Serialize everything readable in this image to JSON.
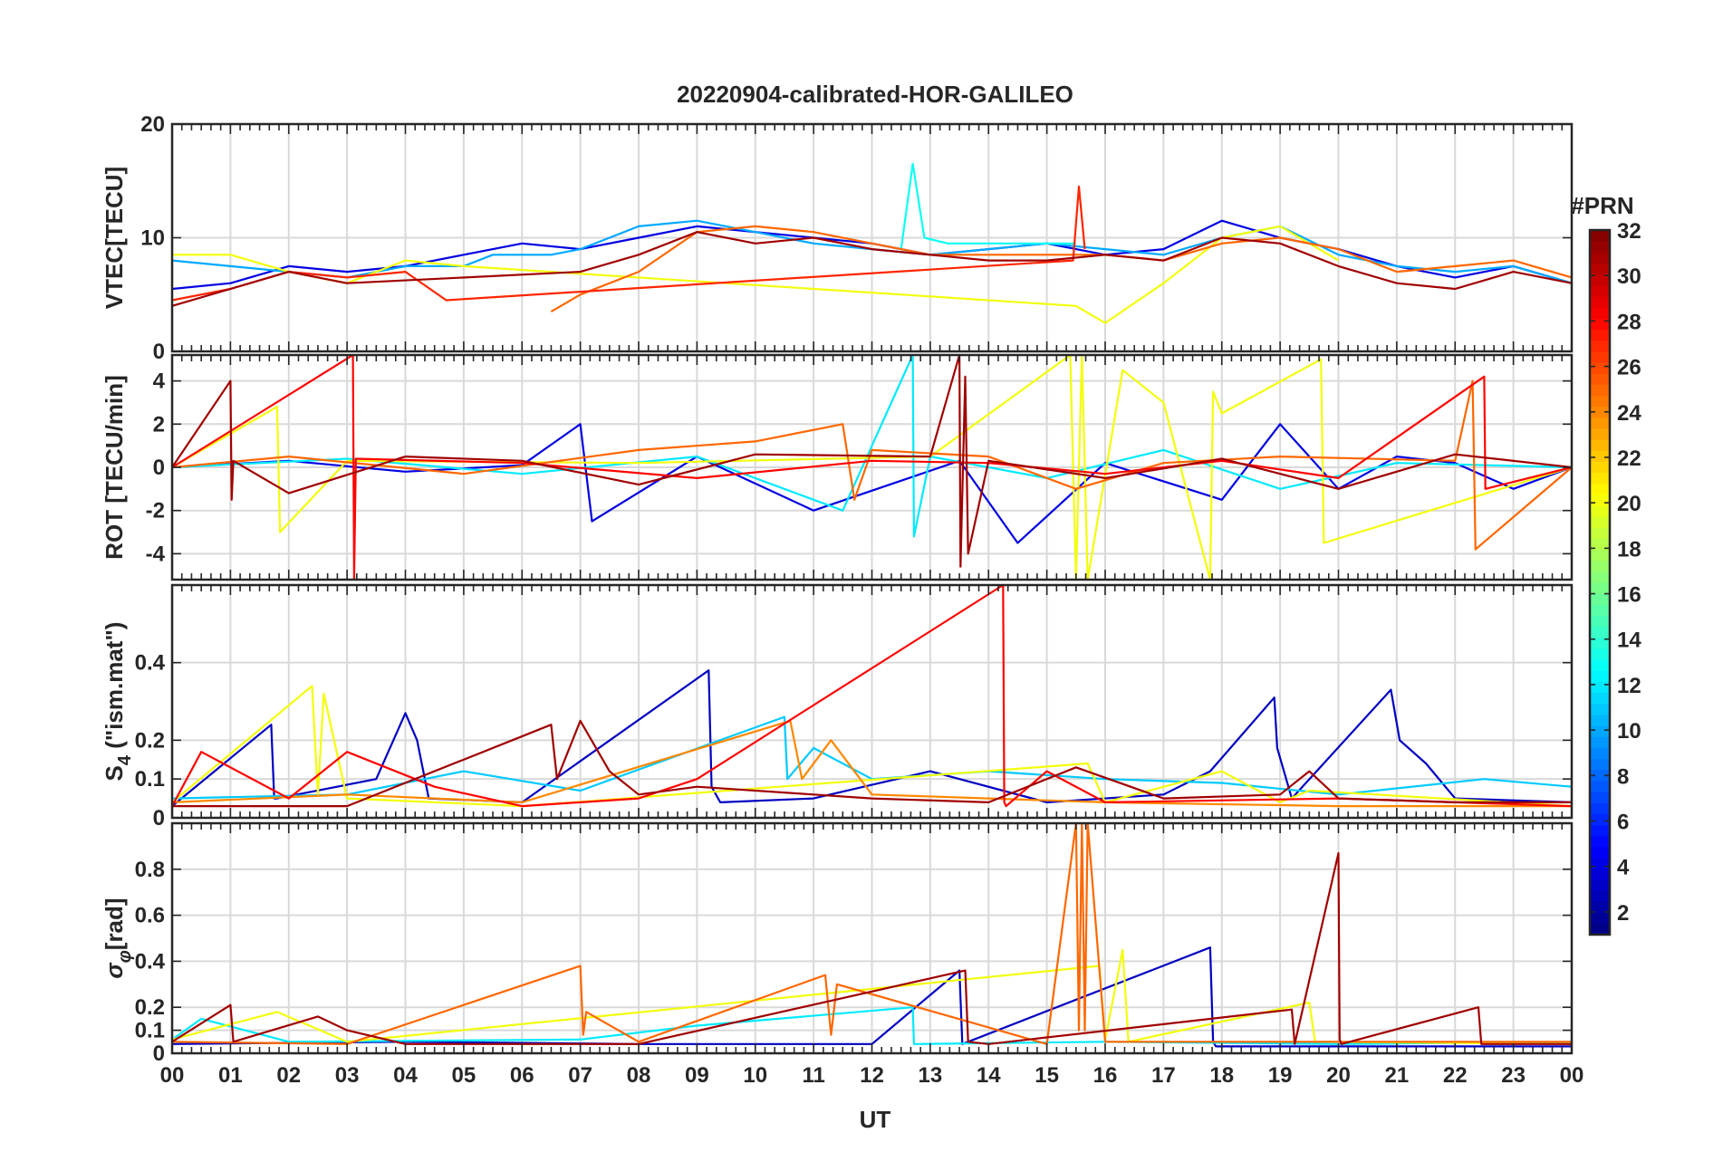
{
  "chart_data": {
    "type": "line",
    "title": "20220904-calibrated-HOR-GALILEO",
    "xlabel": "UT",
    "x_ticks": [
      "00",
      "01",
      "02",
      "03",
      "04",
      "05",
      "06",
      "07",
      "08",
      "09",
      "10",
      "11",
      "12",
      "13",
      "14",
      "15",
      "16",
      "17",
      "18",
      "19",
      "20",
      "21",
      "22",
      "23",
      "00"
    ],
    "xlim": [
      0,
      24
    ],
    "colorbar": {
      "label": "#PRN",
      "range": [
        1,
        32
      ],
      "ticks": [
        "2",
        "4",
        "6",
        "8",
        "10",
        "12",
        "14",
        "16",
        "18",
        "20",
        "22",
        "24",
        "26",
        "28",
        "30",
        "32"
      ],
      "tick_values": [
        2,
        4,
        6,
        8,
        10,
        12,
        14,
        16,
        18,
        20,
        22,
        24,
        26,
        28,
        30,
        32
      ],
      "colormap": "jet"
    },
    "panels": [
      {
        "id": "vtec",
        "ylabel": "VTEC[TECU]",
        "ylim": [
          0,
          20
        ],
        "y_ticks": [
          0,
          10,
          20
        ],
        "y_tick_labels": [
          "0",
          "10",
          "20"
        ],
        "series": [
          {
            "prn": 4,
            "x": [
              0,
              1,
              2,
              3,
              4,
              5,
              6,
              7,
              8,
              9,
              10,
              11,
              12,
              13,
              14,
              15,
              16,
              17,
              18,
              19,
              20,
              21,
              22,
              23,
              24
            ],
            "y": [
              5.5,
              6,
              7.5,
              7,
              7.5,
              8.5,
              9.5,
              9,
              10,
              11,
              10.5,
              10,
              9.5,
              8.5,
              9,
              9.5,
              8.5,
              9,
              11.5,
              10,
              9,
              7.5,
              6.5,
              7.5,
              6
            ]
          },
          {
            "prn": 10,
            "x": [
              0,
              1,
              2,
              3,
              4,
              5,
              5.5,
              6.5,
              7,
              8,
              9,
              10,
              11,
              12,
              13,
              14,
              15,
              16,
              17,
              18,
              19,
              20,
              21,
              22,
              23,
              24
            ],
            "y": [
              8,
              7.5,
              7,
              6.5,
              7.5,
              7.5,
              8.5,
              8.5,
              9,
              11,
              11.5,
              10.5,
              9.5,
              9,
              8.5,
              9,
              9.5,
              9,
              8.5,
              10,
              11,
              8.5,
              7.5,
              7,
              7.5,
              6
            ]
          },
          {
            "prn": 13,
            "x": [
              12.5,
              12.7,
              12.9,
              13.3,
              14,
              15,
              15.5
            ],
            "y": [
              9,
              16.5,
              10,
              9.5,
              9.5,
              9.5,
              9.5
            ]
          },
          {
            "prn": 20,
            "x": [
              0,
              1,
              2,
              3,
              4,
              5,
              15.5,
              16,
              17,
              18,
              19,
              20
            ],
            "y": [
              8.5,
              8.5,
              7,
              6,
              8,
              7.5,
              4,
              2.5,
              6,
              10,
              11,
              8
            ]
          },
          {
            "prn": 25,
            "x": [
              6.5,
              7,
              8,
              9,
              10,
              11,
              12,
              13,
              14,
              15,
              16,
              17,
              18,
              19,
              20,
              21,
              22,
              23,
              24
            ],
            "y": [
              3.5,
              5,
              7,
              10.5,
              11,
              10.5,
              9.5,
              8.5,
              8.5,
              8.5,
              8.5,
              8,
              9.5,
              10,
              9,
              7,
              7.5,
              8,
              6.5
            ]
          },
          {
            "prn": 27,
            "x": [
              0,
              1,
              2,
              3,
              4,
              4.7,
              15.45,
              15.55,
              15.65
            ],
            "y": [
              4.5,
              5.5,
              7,
              6.5,
              7,
              4.5,
              8,
              14.5,
              9
            ]
          },
          {
            "prn": 31,
            "x": [
              0,
              1,
              2,
              3,
              7,
              8,
              9,
              10,
              11,
              12,
              13,
              14,
              15,
              16,
              17,
              18,
              19,
              20,
              21,
              22,
              23,
              24
            ],
            "y": [
              4,
              5.5,
              7,
              6,
              7,
              8.5,
              10.5,
              9.5,
              10,
              9,
              8.5,
              8,
              8,
              8.5,
              8,
              10,
              9.5,
              7.5,
              6,
              5.5,
              7,
              6
            ]
          }
        ]
      },
      {
        "id": "rot",
        "ylabel": "ROT [TECU/min]",
        "ylim": [
          -5.2,
          5.2
        ],
        "y_ticks": [
          -4,
          -2,
          0,
          2,
          4
        ],
        "y_tick_labels": [
          "-4",
          "-2",
          "0",
          "2",
          "4"
        ],
        "series": [
          {
            "prn": 4,
            "x": [
              0,
              2,
              4,
              6,
              7,
              7.2,
              9,
              11,
              13.5,
              14.5,
              16,
              18,
              19,
              20,
              21,
              22,
              23,
              24
            ],
            "y": [
              0,
              0.3,
              -0.2,
              0.1,
              2,
              -2.5,
              0.5,
              -2,
              0.3,
              -3.5,
              0.2,
              -1.5,
              2,
              -1,
              0.5,
              0.2,
              -1,
              0
            ]
          },
          {
            "prn": 12,
            "x": [
              0,
              3,
              6,
              9,
              11.5,
              12.7,
              12.72,
              13,
              15,
              17,
              19,
              21,
              24
            ],
            "y": [
              0,
              0.4,
              -0.3,
              0.5,
              -2,
              5.2,
              -3.2,
              0.5,
              -0.5,
              0.8,
              -1,
              0.2,
              0
            ]
          },
          {
            "prn": 20,
            "x": [
              0,
              1.8,
              1.85,
              3,
              8,
              13,
              15.4,
              15.5,
              15.6,
              15.7,
              16.3,
              17,
              17.8,
              17.85,
              18,
              19.7,
              19.75,
              24
            ],
            "y": [
              0,
              2.8,
              -3,
              0.3,
              0.2,
              0.5,
              5.2,
              -5.2,
              5.2,
              -5.2,
              4.5,
              3,
              -5.2,
              3.5,
              2.5,
              5,
              -3.5,
              0
            ]
          },
          {
            "prn": 25,
            "x": [
              0,
              2,
              5,
              8,
              10,
              11.5,
              11.7,
              12,
              14,
              15.5,
              17,
              19,
              22,
              22.3,
              22.35,
              24
            ],
            "y": [
              0,
              0.5,
              -0.3,
              0.8,
              1.2,
              2,
              -1.5,
              0.8,
              0.5,
              -1,
              0.2,
              0.5,
              0.3,
              4,
              -3.8,
              0
            ]
          },
          {
            "prn": 28,
            "x": [
              0,
              3.1,
              3.12,
              3.15,
              6,
              9,
              12,
              14,
              16,
              18,
              20,
              22.5,
              22.52,
              24
            ],
            "y": [
              0,
              5.2,
              -5.2,
              0.4,
              0.2,
              -0.5,
              0.3,
              0.2,
              -0.3,
              0.3,
              -0.5,
              4.2,
              -1,
              0
            ]
          },
          {
            "prn": 31,
            "x": [
              0,
              1,
              1.02,
              1.05,
              2,
              4,
              6,
              8,
              10,
              13,
              13.5,
              13.52,
              13.6,
              13.65,
              14,
              16,
              18,
              20,
              22,
              24
            ],
            "y": [
              0,
              4,
              -1.5,
              0.3,
              -1.2,
              0.5,
              0.3,
              -0.8,
              0.6,
              0.5,
              5.2,
              -4.6,
              4.2,
              -4,
              0.3,
              -0.5,
              0.4,
              -1,
              0.6,
              0
            ]
          }
        ]
      },
      {
        "id": "s4",
        "ylabel": "S4 (\"ism.mat\")",
        "ylabel_main": "S",
        "ylabel_sub": "4",
        "ylabel_rest": " (\"ism.mat\")",
        "ylim": [
          0,
          0.6
        ],
        "y_ticks": [
          0,
          0.1,
          0.2,
          0.4
        ],
        "y_tick_labels": [
          "0",
          "0.1",
          "0.2",
          "0.4"
        ],
        "series": [
          {
            "prn": 3,
            "x": [
              0,
              1.7,
              1.75,
              1.8,
              3.5,
              4,
              4.2,
              4.4,
              6,
              9.2,
              9.25,
              9.4,
              11,
              13,
              15,
              17,
              17.8,
              18.9,
              18.95,
              19.2,
              20.9,
              21.05,
              21.5,
              22,
              24
            ],
            "y": [
              0.03,
              0.24,
              0.05,
              0.05,
              0.1,
              0.27,
              0.2,
              0.05,
              0.04,
              0.38,
              0.08,
              0.04,
              0.05,
              0.12,
              0.04,
              0.06,
              0.12,
              0.31,
              0.18,
              0.05,
              0.33,
              0.2,
              0.14,
              0.05,
              0.04
            ]
          },
          {
            "prn": 11,
            "x": [
              0,
              3,
              5,
              7,
              10.5,
              10.55,
              11,
              12,
              14,
              16,
              18,
              20,
              22.5,
              24
            ],
            "y": [
              0.05,
              0.06,
              0.12,
              0.07,
              0.26,
              0.1,
              0.18,
              0.1,
              0.12,
              0.1,
              0.09,
              0.06,
              0.1,
              0.08
            ]
          },
          {
            "prn": 20,
            "x": [
              0,
              2.4,
              2.5,
              2.6,
              3,
              6,
              15.7,
              16,
              18,
              19,
              19.5,
              24
            ],
            "y": [
              0.04,
              0.34,
              0.06,
              0.32,
              0.05,
              0.03,
              0.14,
              0.04,
              0.12,
              0.04,
              0.07,
              0.03
            ]
          },
          {
            "prn": 24,
            "x": [
              0,
              3,
              6,
              10.6,
              10.8,
              11.3,
              12,
              14,
              16,
              20,
              24
            ],
            "y": [
              0.04,
              0.06,
              0.04,
              0.25,
              0.1,
              0.2,
              0.06,
              0.05,
              0.04,
              0.03,
              0.03
            ]
          },
          {
            "prn": 28,
            "x": [
              0,
              0.5,
              2,
              3,
              4.5,
              6,
              8,
              9,
              14.25,
              14.27,
              14.3,
              15,
              16,
              20,
              24
            ],
            "y": [
              0.03,
              0.17,
              0.05,
              0.17,
              0.08,
              0.03,
              0.05,
              0.1,
              0.6,
              0.04,
              0.03,
              0.12,
              0.04,
              0.05,
              0.03
            ]
          },
          {
            "prn": 31,
            "x": [
              0,
              3,
              6.5,
              6.6,
              7,
              7.5,
              8,
              9,
              12,
              14,
              15.5,
              17,
              19,
              19.5,
              20,
              22,
              24
            ],
            "y": [
              0.03,
              0.03,
              0.24,
              0.1,
              0.25,
              0.12,
              0.06,
              0.08,
              0.05,
              0.04,
              0.13,
              0.05,
              0.06,
              0.12,
              0.05,
              0.04,
              0.04
            ]
          }
        ]
      },
      {
        "id": "sigma",
        "ylabel": "σφ[rad]",
        "ylabel_main": "σ",
        "ylabel_sub": "φ",
        "ylabel_rest": "[rad]",
        "ylim": [
          0,
          1
        ],
        "y_ticks": [
          0,
          0.1,
          0.2,
          0.4,
          0.6,
          0.8
        ],
        "y_tick_labels": [
          "0",
          "0.1",
          "0.2",
          "0.4",
          "0.6",
          "0.8"
        ],
        "series": [
          {
            "prn": 3,
            "x": [
              0,
              4,
              8,
              12,
              13.5,
              13.55,
              17.8,
              17.85,
              17.9,
              24
            ],
            "y": [
              0.04,
              0.05,
              0.04,
              0.04,
              0.36,
              0.04,
              0.46,
              0.05,
              0.03,
              0.03
            ]
          },
          {
            "prn": 12,
            "x": [
              0,
              0.5,
              2,
              7,
              9,
              12.7,
              12.72,
              16,
              20,
              24
            ],
            "y": [
              0.06,
              0.15,
              0.05,
              0.06,
              0.12,
              0.2,
              0.04,
              0.05,
              0.04,
              0.05
            ]
          },
          {
            "prn": 20,
            "x": [
              0,
              1.8,
              3,
              15.9,
              16,
              16.3,
              16.4,
              19.5,
              19.6,
              24
            ],
            "y": [
              0.06,
              0.18,
              0.05,
              0.38,
              0.06,
              0.45,
              0.05,
              0.22,
              0.05,
              0.04
            ]
          },
          {
            "prn": 25,
            "x": [
              0,
              3,
              7,
              7.05,
              7.1,
              8,
              11.2,
              11.3,
              11.4,
              15,
              15.5,
              15.55,
              15.6,
              15.65,
              15.7,
              16,
              24
            ],
            "y": [
              0.05,
              0.04,
              0.38,
              0.08,
              0.18,
              0.05,
              0.34,
              0.08,
              0.3,
              0.04,
              1,
              0.1,
              1,
              0.1,
              1,
              0.05,
              0.05
            ]
          },
          {
            "prn": 31,
            "x": [
              0,
              1,
              1.05,
              2.5,
              3,
              4,
              8,
              13.6,
              13.65,
              14,
              19.2,
              19.25,
              20,
              20.02,
              20.05,
              22.4,
              22.45,
              24
            ],
            "y": [
              0.05,
              0.21,
              0.05,
              0.16,
              0.1,
              0.04,
              0.04,
              0.36,
              0.05,
              0.04,
              0.19,
              0.04,
              0.87,
              0.06,
              0.04,
              0.2,
              0.04,
              0.04
            ]
          }
        ]
      }
    ]
  }
}
